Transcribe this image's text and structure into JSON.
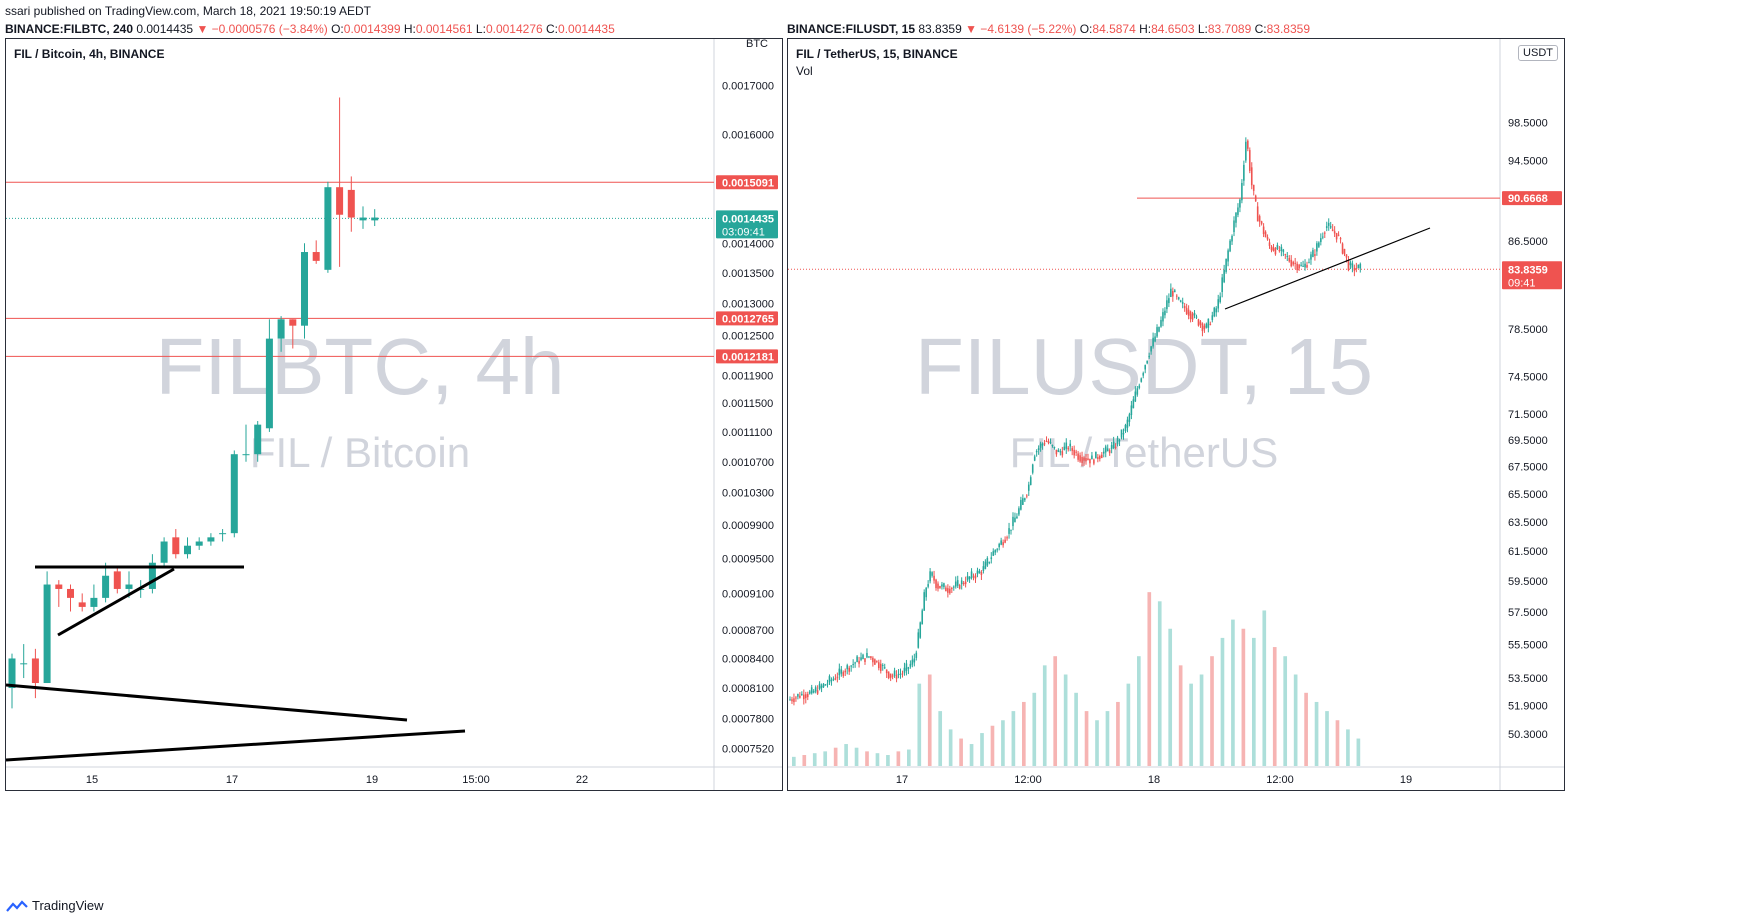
{
  "publish_line": "ssari published on TradingView.com, March 18, 2021 19:50:19 AEDT",
  "footer": {
    "brand": "TradingView"
  },
  "left": {
    "header": {
      "symbol": "BINANCE:FILBTC, 240",
      "last": "0.0014435",
      "change": "▼ −0.0000576 (−3.84%)",
      "o_label": "O:",
      "o": "0.0014399",
      "h_label": "H:",
      "h": "0.0014561",
      "l_label": "L:",
      "l": "0.0014276",
      "c_label": "C:",
      "c": "0.0014435"
    },
    "title": "FIL / Bitcoin, 4h, BINANCE",
    "watermark_main": "FILBTC, 4h",
    "watermark_sub": "FIL / Bitcoin",
    "currency_top": "BTC",
    "colors": {
      "up": "#26a69a",
      "down": "#ef5350",
      "hline": "#ef5350",
      "trend": "#000000"
    }
  },
  "right": {
    "header": {
      "symbol": "BINANCE:FILUSDT, 15",
      "last": "83.8359",
      "change": "▼ −4.6139 (−5.22%)",
      "o_label": "O:",
      "o": "84.5874",
      "h_label": "H:",
      "h": "84.6503",
      "l_label": "L:",
      "l": "83.7089",
      "c_label": "C:",
      "c": "83.8359"
    },
    "title": "FIL / TetherUS, 15, BINANCE",
    "vol_label": "Vol",
    "currency_badge": "USDT",
    "watermark_main": "FILUSDT, 15",
    "watermark_sub": "FIL / TetherUS",
    "colors": {
      "up": "#26a69a",
      "down": "#ef5350",
      "hline": "#ef5350",
      "trend": "#000000"
    }
  },
  "chart_data": [
    {
      "type": "candlestick",
      "symbol": "BINANCE:FILBTC",
      "interval": "4h",
      "scale": "log",
      "price_axis_ticks": [
        "0.0017000",
        "0.0016000",
        "0.0014000",
        "0.0013500",
        "0.0013000",
        "0.0012500",
        "0.0011900",
        "0.0011500",
        "0.0011100",
        "0.0010700",
        "0.0010300",
        "0.0009900",
        "0.0009500",
        "0.0009100",
        "0.0008700",
        "0.0008400",
        "0.0008100",
        "0.0007800",
        "0.0007520"
      ],
      "time_axis_ticks": [
        "15",
        "17",
        "19",
        "15:00",
        "22"
      ],
      "horizontal_lines": [
        {
          "value": 0.0015091,
          "label": "0.0015091"
        },
        {
          "value": 0.0012765,
          "label": "0.0012765"
        },
        {
          "value": 0.0012181,
          "label": "0.0012181"
        }
      ],
      "last_price": {
        "value": 0.0014435,
        "label": "0.0014435",
        "countdown": "03:09:41"
      },
      "candles": [
        [
          0.00081,
          0.00084,
          0.000845,
          0.00079
        ],
        [
          0.000835,
          0.000835,
          0.000855,
          0.00082
        ],
        [
          0.00084,
          0.000815,
          0.00085,
          0.0008
        ],
        [
          0.000815,
          0.00092,
          0.000935,
          0.000815
        ],
        [
          0.00092,
          0.000915,
          0.000925,
          0.000895
        ],
        [
          0.000915,
          0.000905,
          0.00092,
          0.00089
        ],
        [
          0.0009,
          0.000895,
          0.00091,
          0.00089
        ],
        [
          0.000895,
          0.000905,
          0.00092,
          0.00089
        ],
        [
          0.000905,
          0.00093,
          0.000945,
          0.0009
        ],
        [
          0.000935,
          0.000915,
          0.00094,
          0.00091
        ],
        [
          0.000915,
          0.00092,
          0.000935,
          0.000905
        ],
        [
          0.000915,
          0.000915,
          0.000925,
          0.000905
        ],
        [
          0.000915,
          0.000945,
          0.000955,
          0.00091
        ],
        [
          0.000945,
          0.00097,
          0.000975,
          0.00094
        ],
        [
          0.000975,
          0.000955,
          0.000985,
          0.00095
        ],
        [
          0.000955,
          0.000965,
          0.000975,
          0.00095
        ],
        [
          0.000965,
          0.00097,
          0.000975,
          0.00096
        ],
        [
          0.00097,
          0.000975,
          0.00098,
          0.000965
        ],
        [
          0.00098,
          0.00098,
          0.000985,
          0.00097
        ],
        [
          0.00098,
          0.00108,
          0.001085,
          0.000975
        ],
        [
          0.00108,
          0.00108,
          0.00112,
          0.00107
        ],
        [
          0.00108,
          0.00112,
          0.001125,
          0.00107
        ],
        [
          0.001115,
          0.001245,
          0.001275,
          0.00111
        ],
        [
          0.001245,
          0.001275,
          0.00128,
          0.001225
        ],
        [
          0.001275,
          0.001265,
          0.001275,
          0.00123
        ],
        [
          0.001265,
          0.001385,
          0.0014,
          0.001245
        ],
        [
          0.001385,
          0.00137,
          0.001405,
          0.001365
        ],
        [
          0.001355,
          0.0015,
          0.00151,
          0.00135
        ],
        [
          0.0015,
          0.00145,
          0.001675,
          0.00136
        ],
        [
          0.001495,
          0.001445,
          0.00152,
          0.00142
        ],
        [
          0.00144,
          0.001445,
          0.001465,
          0.001425
        ],
        [
          0.00144,
          0.001445,
          0.00146,
          0.00143
        ]
      ]
    },
    {
      "type": "candlestick",
      "symbol": "BINANCE:FILUSDT",
      "interval": "15",
      "scale": "log",
      "price_axis_ticks": [
        "98.5000",
        "94.5000",
        "86.5000",
        "78.5000",
        "74.5000",
        "71.5000",
        "69.5000",
        "67.5000",
        "65.5000",
        "63.5000",
        "61.5000",
        "59.5000",
        "57.5000",
        "55.5000",
        "53.5000",
        "51.9000",
        "50.3000"
      ],
      "time_axis_ticks": [
        "17",
        "12:00",
        "18",
        "12:00",
        "19"
      ],
      "horizontal_lines": [
        {
          "value": 90.6668,
          "label": "90.6668"
        }
      ],
      "last_price": {
        "value": 83.8359,
        "label": "83.8359",
        "countdown": "09:41"
      },
      "indicators": [
        "Vol"
      ],
      "path": [
        [
          0.0,
          52.2
        ],
        [
          0.017,
          52.5
        ],
        [
          0.033,
          52.6
        ],
        [
          0.05,
          53.0
        ],
        [
          0.067,
          53.5
        ],
        [
          0.083,
          54.0
        ],
        [
          0.1,
          54.5
        ],
        [
          0.117,
          54.8
        ],
        [
          0.133,
          54.3
        ],
        [
          0.15,
          53.6
        ],
        [
          0.167,
          53.8
        ],
        [
          0.183,
          54.5
        ],
        [
          0.19,
          56.0
        ],
        [
          0.2,
          59.0
        ],
        [
          0.208,
          60.0
        ],
        [
          0.217,
          59.2
        ],
        [
          0.233,
          59.0
        ],
        [
          0.25,
          59.3
        ],
        [
          0.267,
          59.8
        ],
        [
          0.283,
          60.2
        ],
        [
          0.3,
          61.5
        ],
        [
          0.317,
          62.5
        ],
        [
          0.333,
          64.0
        ],
        [
          0.35,
          66.0
        ],
        [
          0.358,
          68.5
        ],
        [
          0.375,
          69.5
        ],
        [
          0.392,
          68.5
        ],
        [
          0.408,
          69.0
        ],
        [
          0.425,
          68.2
        ],
        [
          0.442,
          68.0
        ],
        [
          0.458,
          68.5
        ],
        [
          0.475,
          69.0
        ],
        [
          0.492,
          70.5
        ],
        [
          0.508,
          73.5
        ],
        [
          0.525,
          76.5
        ],
        [
          0.542,
          79.0
        ],
        [
          0.558,
          82.0
        ],
        [
          0.567,
          81.0
        ],
        [
          0.575,
          80.5
        ],
        [
          0.592,
          79.5
        ],
        [
          0.608,
          78.5
        ],
        [
          0.625,
          80.5
        ],
        [
          0.633,
          83.0
        ],
        [
          0.642,
          86.0
        ],
        [
          0.65,
          88.5
        ],
        [
          0.658,
          90.5
        ],
        [
          0.667,
          97.0
        ],
        [
          0.675,
          92.0
        ],
        [
          0.683,
          89.0
        ],
        [
          0.7,
          86.0
        ],
        [
          0.717,
          85.5
        ],
        [
          0.733,
          84.5
        ],
        [
          0.75,
          84.0
        ],
        [
          0.767,
          85.5
        ],
        [
          0.783,
          88.0
        ],
        [
          0.8,
          87.0
        ],
        [
          0.817,
          84.0
        ],
        [
          0.833,
          83.9
        ]
      ],
      "volume_relative": [
        0.05,
        0.06,
        0.07,
        0.08,
        0.1,
        0.12,
        0.1,
        0.08,
        0.07,
        0.06,
        0.08,
        0.09,
        0.45,
        0.5,
        0.3,
        0.2,
        0.15,
        0.12,
        0.18,
        0.22,
        0.25,
        0.3,
        0.35,
        0.4,
        0.55,
        0.6,
        0.5,
        0.4,
        0.3,
        0.25,
        0.3,
        0.35,
        0.45,
        0.6,
        0.95,
        0.9,
        0.75,
        0.55,
        0.45,
        0.5,
        0.6,
        0.7,
        0.8,
        0.75,
        0.7,
        0.85,
        0.65,
        0.6,
        0.5,
        0.4,
        0.35,
        0.3,
        0.25,
        0.2,
        0.15
      ]
    }
  ]
}
